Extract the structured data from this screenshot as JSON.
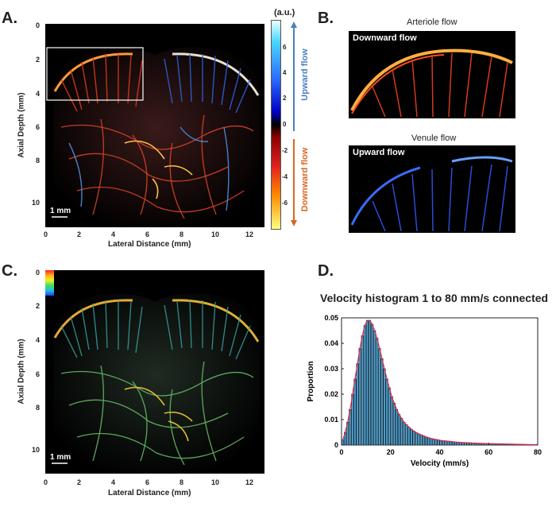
{
  "panels": {
    "a": {
      "label": "A.",
      "ylabel": "Axial Depth (mm)",
      "xlabel": "Lateral Distance (mm)",
      "yticks": [
        "0",
        "2",
        "4",
        "6",
        "8",
        "10"
      ],
      "xticks": [
        "0",
        "2",
        "4",
        "6",
        "8",
        "10",
        "12"
      ],
      "scalebar": "1 mm",
      "colorbar_unit": "(a.u.)",
      "colorbar_ticks": [
        "6",
        "4",
        "2",
        "0",
        "-2",
        "-4",
        "-6"
      ],
      "upward_label": "Upward flow",
      "downward_label": "Downward flow"
    },
    "b": {
      "label": "B.",
      "arteriole_title": "Arteriole flow",
      "arteriole_tag": "Downward flow",
      "venule_title": "Venule flow",
      "venule_tag": "Upward flow"
    },
    "c": {
      "label": "C.",
      "ylabel": "Axial Depth (mm)",
      "xlabel": "Lateral Distance (mm)",
      "yticks": [
        "0",
        "2",
        "4",
        "6",
        "8",
        "10"
      ],
      "xticks": [
        "0",
        "2",
        "4",
        "6",
        "8",
        "10",
        "12"
      ],
      "scalebar": "1 mm"
    },
    "d": {
      "label": "D."
    }
  },
  "colors": {
    "upward": "#4a7fc1",
    "downward": "#d9661f",
    "bar_fill": "#4aa3d6",
    "fit_line": "#e0294a"
  },
  "chart_data": {
    "type": "bar",
    "title": "Velocity histogram 1 to 80 mm/s connected",
    "xlabel": "Velocity (mm/s)",
    "ylabel": "Proportion",
    "xlim": [
      0,
      80
    ],
    "ylim": [
      0,
      0.05
    ],
    "xticks": [
      0,
      20,
      40,
      60,
      80
    ],
    "yticks": [
      0,
      0.01,
      0.02,
      0.03,
      0.04,
      0.05
    ],
    "ytick_labels": [
      "0",
      "0.01",
      "0.02",
      "0.03",
      "0.04",
      "0.05"
    ],
    "x": [
      1,
      2,
      3,
      4,
      5,
      6,
      7,
      8,
      9,
      10,
      11,
      12,
      13,
      14,
      15,
      16,
      17,
      18,
      19,
      20,
      21,
      22,
      23,
      24,
      25,
      26,
      27,
      28,
      29,
      30,
      31,
      32,
      33,
      34,
      35,
      36,
      37,
      38,
      39,
      40,
      41,
      42,
      43,
      44,
      45,
      46,
      47,
      48,
      49,
      50,
      51,
      52,
      53,
      54,
      55,
      56,
      57,
      58,
      59,
      60,
      61,
      62,
      63,
      64,
      65,
      66,
      67,
      68,
      69,
      70,
      71,
      72,
      73,
      74,
      75,
      76,
      77,
      78,
      79,
      80
    ],
    "values": [
      0.002,
      0.005,
      0.009,
      0.014,
      0.02,
      0.026,
      0.032,
      0.038,
      0.043,
      0.047,
      0.049,
      0.049,
      0.0475,
      0.045,
      0.042,
      0.038,
      0.034,
      0.03,
      0.026,
      0.0225,
      0.019,
      0.0165,
      0.014,
      0.012,
      0.0105,
      0.009,
      0.008,
      0.007,
      0.0062,
      0.0055,
      0.0049,
      0.0044,
      0.004,
      0.0036,
      0.0032,
      0.0029,
      0.0026,
      0.0024,
      0.0022,
      0.002,
      0.0018,
      0.0017,
      0.0016,
      0.0015,
      0.0014,
      0.0013,
      0.0012,
      0.0011,
      0.00105,
      0.001,
      0.00095,
      0.0009,
      0.00085,
      0.0008,
      0.00075,
      0.0007,
      0.00066,
      0.00062,
      0.00058,
      0.00055,
      0.00052,
      0.0005,
      0.00048,
      0.00046,
      0.00044,
      0.00042,
      0.0004,
      0.00038,
      0.00036,
      0.00034,
      0.00032,
      0.0003,
      0.00028,
      0.00026,
      0.00024,
      0.00022,
      0.0002,
      0.00018,
      0.00016,
      0.00015
    ]
  }
}
